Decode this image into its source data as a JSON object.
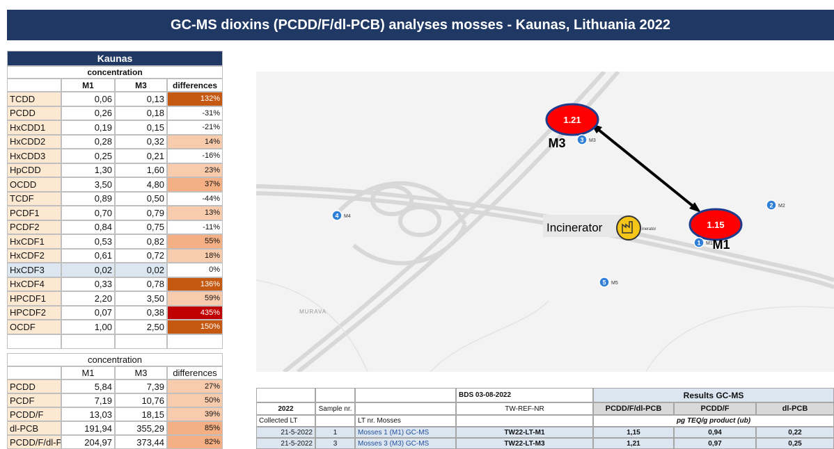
{
  "title": "GC-MS dioxins (PCDD/F/dl-PCB)  analyses mosses  -  Kaunas, Lithuania 2022",
  "left_table": {
    "header": "Kaunas",
    "subheader": "concentration",
    "columns": [
      "M1",
      "M3",
      "differences"
    ],
    "rows": [
      {
        "name": "TCDD",
        "m1": "0,06",
        "m3": "0,13",
        "diff": "132%",
        "color": "#c65911"
      },
      {
        "name": "PCDD",
        "m1": "0,26",
        "m3": "0,18",
        "diff": "-31%",
        "color": "#ffffff"
      },
      {
        "name": "HxCDD1",
        "m1": "0,19",
        "m3": "0,15",
        "diff": "-21%",
        "color": "#ffffff"
      },
      {
        "name": "HxCDD2",
        "m1": "0,28",
        "m3": "0,32",
        "diff": "14%",
        "color": "#f8cbad"
      },
      {
        "name": "HxCDD3",
        "m1": "0,25",
        "m3": "0,21",
        "diff": "-16%",
        "color": "#ffffff"
      },
      {
        "name": "HpCDD",
        "m1": "1,30",
        "m3": "1,60",
        "diff": "23%",
        "color": "#f8cbad"
      },
      {
        "name": "OCDD",
        "m1": "3,50",
        "m3": "4,80",
        "diff": "37%",
        "color": "#f4b084"
      },
      {
        "name": "TCDF",
        "m1": "0,89",
        "m3": "0,50",
        "diff": "-44%",
        "color": "#ffffff"
      },
      {
        "name": "PCDF1",
        "m1": "0,70",
        "m3": "0,79",
        "diff": "13%",
        "color": "#f8cbad"
      },
      {
        "name": "PCDF2",
        "m1": "0,84",
        "m3": "0,75",
        "diff": "-11%",
        "color": "#ffffff"
      },
      {
        "name": "HxCDF1",
        "m1": "0,53",
        "m3": "0,82",
        "diff": "55%",
        "color": "#f4b084"
      },
      {
        "name": "HxCDF2",
        "m1": "0,61",
        "m3": "0,72",
        "diff": "18%",
        "color": "#f8cbad"
      },
      {
        "name": "HxCDF3",
        "m1": "0,02",
        "m3": "0,02",
        "diff": "0%",
        "color": "#ffffff",
        "row_color": "#dce6f1"
      },
      {
        "name": "HxCDF4",
        "m1": "0,33",
        "m3": "0,78",
        "diff": "136%",
        "color": "#c65911"
      },
      {
        "name": "HPCDF1",
        "m1": "2,20",
        "m3": "3,50",
        "diff": "59%",
        "color": "#f8cbad"
      },
      {
        "name": "HPCDF2",
        "m1": "0,07",
        "m3": "0,38",
        "diff": "435%",
        "color": "#c00000"
      },
      {
        "name": "OCDF",
        "m1": "1,00",
        "m3": "2,50",
        "diff": "150%",
        "color": "#c65911"
      }
    ]
  },
  "summary_table": {
    "subheader": "concentration",
    "columns": [
      "M1",
      "M3",
      "differences"
    ],
    "rows": [
      {
        "name": "PCDD",
        "m1": "5,84",
        "m3": "7,39",
        "diff": "27%",
        "color": "#f8cbad"
      },
      {
        "name": "PCDF",
        "m1": "7,19",
        "m3": "10,76",
        "diff": "50%",
        "color": "#f8cbad"
      },
      {
        "name": "PCDD/F",
        "m1": "13,03",
        "m3": "18,15",
        "diff": "39%",
        "color": "#f8cbad"
      },
      {
        "name": "dl-PCB",
        "m1": "191,94",
        "m3": "355,29",
        "diff": "85%",
        "color": "#f4b084"
      },
      {
        "name": "PCDD/F/dl-P",
        "m1": "204,97",
        "m3": "373,44",
        "diff": "82%",
        "color": "#f4b084"
      }
    ]
  },
  "map": {
    "results": [
      {
        "value": "1.21",
        "site": "M3"
      },
      {
        "value": "1.15",
        "site": "M1"
      }
    ],
    "markers": [
      {
        "n": "1",
        "label": "M1"
      },
      {
        "n": "2",
        "label": "M2"
      },
      {
        "n": "3",
        "label": "M3"
      },
      {
        "n": "4",
        "label": "M4"
      },
      {
        "n": "5",
        "label": "M5"
      }
    ],
    "incinerator": "Incinerator",
    "incinerator_small": "inerator",
    "place": "MURAVA"
  },
  "results_table": {
    "date_header": "BDS 03-08-2022",
    "results_header": "Results GC-MS",
    "header": [
      "2022",
      "Sample nr.",
      "",
      "TW-REF-NR",
      "PCDD/F/dl-PCB",
      "PCDD/F",
      "dl-PCB"
    ],
    "sub": {
      "collected": "Collected LT",
      "mosses": "LT nr. Mosses",
      "unit": "pg TEQ/g product  (ub)"
    },
    "rows": [
      [
        "21-5-2022",
        "1",
        "Mosses 1  (M1)   GC-MS",
        "TW22-LT-M1",
        "1,15",
        "0,94",
        "0,22"
      ],
      [
        "21-5-2022",
        "3",
        "Mosses 3  (M3)   GC-MS",
        "TW22-LT-M3",
        "1,21",
        "0,97",
        "0,25"
      ]
    ]
  }
}
